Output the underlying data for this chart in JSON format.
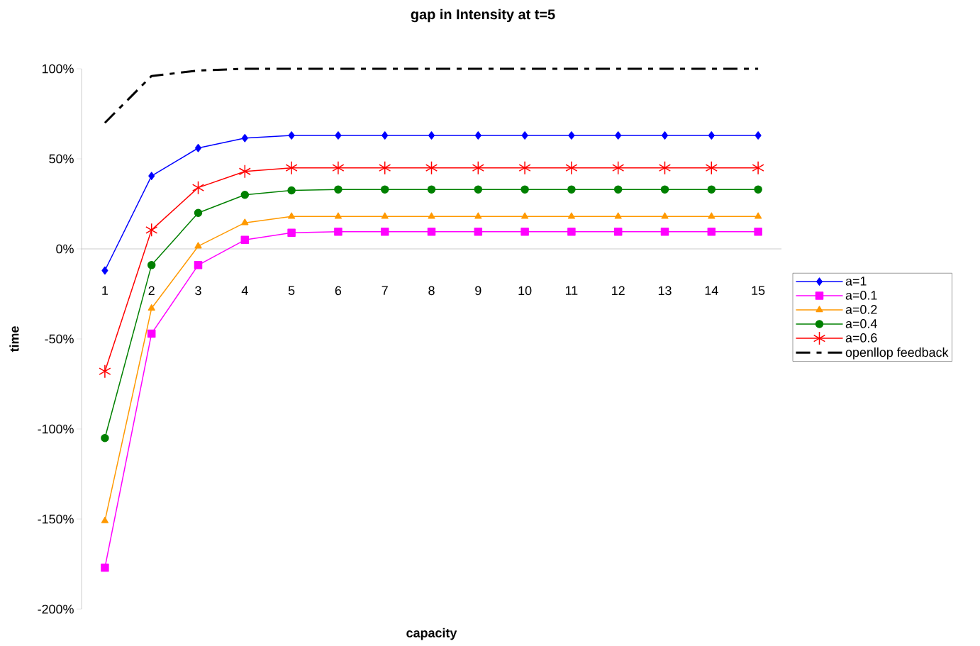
{
  "chart_data": {
    "type": "line",
    "title": "gap in Intensity at t=5",
    "xlabel": "capacity",
    "ylabel": "time",
    "categories": [
      "1",
      "2",
      "3",
      "4",
      "5",
      "6",
      "7",
      "8",
      "9",
      "10",
      "11",
      "12",
      "13",
      "14",
      "15"
    ],
    "ylim": [
      -200,
      100
    ],
    "yticks": [
      {
        "value": -200,
        "label": "-200%"
      },
      {
        "value": -150,
        "label": "-150%"
      },
      {
        "value": -100,
        "label": "-100%"
      },
      {
        "value": -50,
        "label": "-50%"
      },
      {
        "value": 0,
        "label": "0%"
      },
      {
        "value": 50,
        "label": "50%"
      },
      {
        "value": 100,
        "label": "100%"
      }
    ],
    "legend": "right",
    "series": [
      {
        "name": "a=1",
        "color": "#0000ff",
        "marker": "diamond",
        "values": [
          -12,
          40.5,
          56,
          61.5,
          63,
          63,
          63,
          63,
          63,
          63,
          63,
          63,
          63,
          63,
          63
        ]
      },
      {
        "name": "a=0.1",
        "color": "#ff00ff",
        "marker": "square",
        "values": [
          -177,
          -47,
          -9,
          5,
          9,
          9.5,
          9.5,
          9.5,
          9.5,
          9.5,
          9.5,
          9.5,
          9.5,
          9.5,
          9.5
        ]
      },
      {
        "name": "a=0.2",
        "color": "#ff9900",
        "marker": "triangle",
        "values": [
          -151,
          -33,
          1.5,
          14.5,
          18,
          18,
          18,
          18,
          18,
          18,
          18,
          18,
          18,
          18,
          18
        ]
      },
      {
        "name": "a=0.4",
        "color": "#008000",
        "marker": "circle",
        "values": [
          -105,
          -9,
          20,
          30,
          32.5,
          33,
          33,
          33,
          33,
          33,
          33,
          33,
          33,
          33,
          33
        ]
      },
      {
        "name": "a=0.6",
        "color": "#ff0000",
        "marker": "cross",
        "values": [
          -68,
          10.5,
          34,
          43,
          45,
          45,
          45,
          45,
          45,
          45,
          45,
          45,
          45,
          45,
          45
        ]
      },
      {
        "name": "openllop feedback",
        "color": "#000000",
        "marker": "none",
        "line_style": "dashed",
        "values": [
          70,
          96,
          99,
          100,
          100,
          100,
          100,
          100,
          100,
          100,
          100,
          100,
          100,
          100,
          100
        ]
      }
    ]
  }
}
